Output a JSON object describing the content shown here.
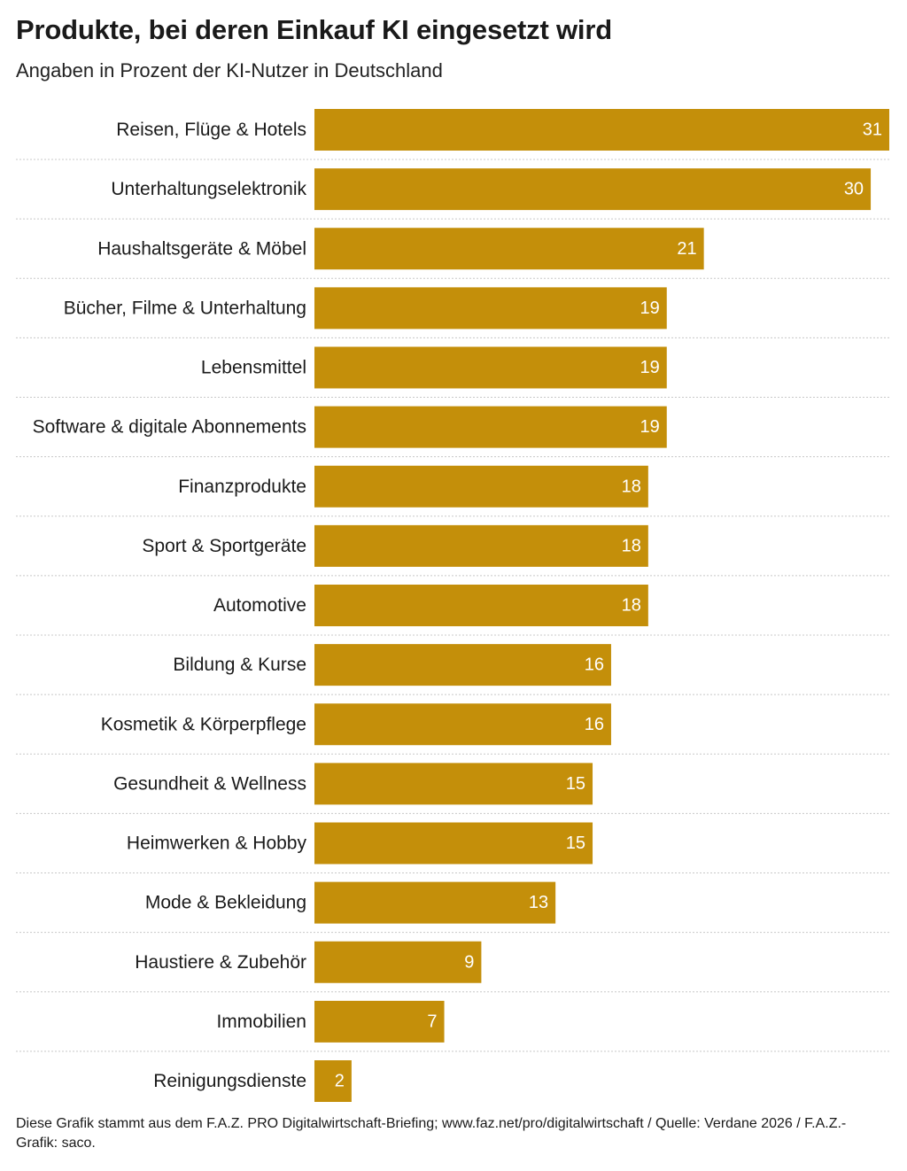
{
  "title": "Produkte, bei deren Einkauf KI eingesetzt wird",
  "subtitle": "Angaben in Prozent der KI-Nutzer in Deutschland",
  "footer": "Diese Grafik stammt aus dem F.A.Z. PRO Digitalwirtschaft-Briefing; www.faz.net/pro/digitalwirtschaft / Quelle: Verdane 2026 / F.A.Z.-Grafik: saco.",
  "colors": {
    "bar": "#c48f0a",
    "bar_label": "#ffffff",
    "separator": "#c8c8c8",
    "text": "#1a1a1a"
  },
  "chart_data": {
    "type": "bar",
    "orientation": "horizontal",
    "title": "Produkte, bei deren Einkauf KI eingesetzt wird",
    "subtitle": "Angaben in Prozent der KI-Nutzer in Deutschland",
    "xlabel": "",
    "ylabel": "",
    "xlim": [
      0,
      31
    ],
    "grid": false,
    "categories": [
      "Reisen, Flüge & Hotels",
      "Unterhaltungselektronik",
      "Haushaltsgeräte & Möbel",
      "Bücher, Filme & Unterhaltung",
      "Lebensmittel",
      "Software & digitale Abonnements",
      "Finanzprodukte",
      "Sport & Sportgeräte",
      "Automotive",
      "Bildung & Kurse",
      "Kosmetik & Körperpflege",
      "Gesundheit & Wellness",
      "Heimwerken & Hobby",
      "Mode & Bekleidung",
      "Haustiere & Zubehör",
      "Immobilien",
      "Reinigungsdienste"
    ],
    "values": [
      31,
      30,
      21,
      19,
      19,
      19,
      18,
      18,
      18,
      16,
      16,
      15,
      15,
      13,
      9,
      7,
      2
    ]
  }
}
